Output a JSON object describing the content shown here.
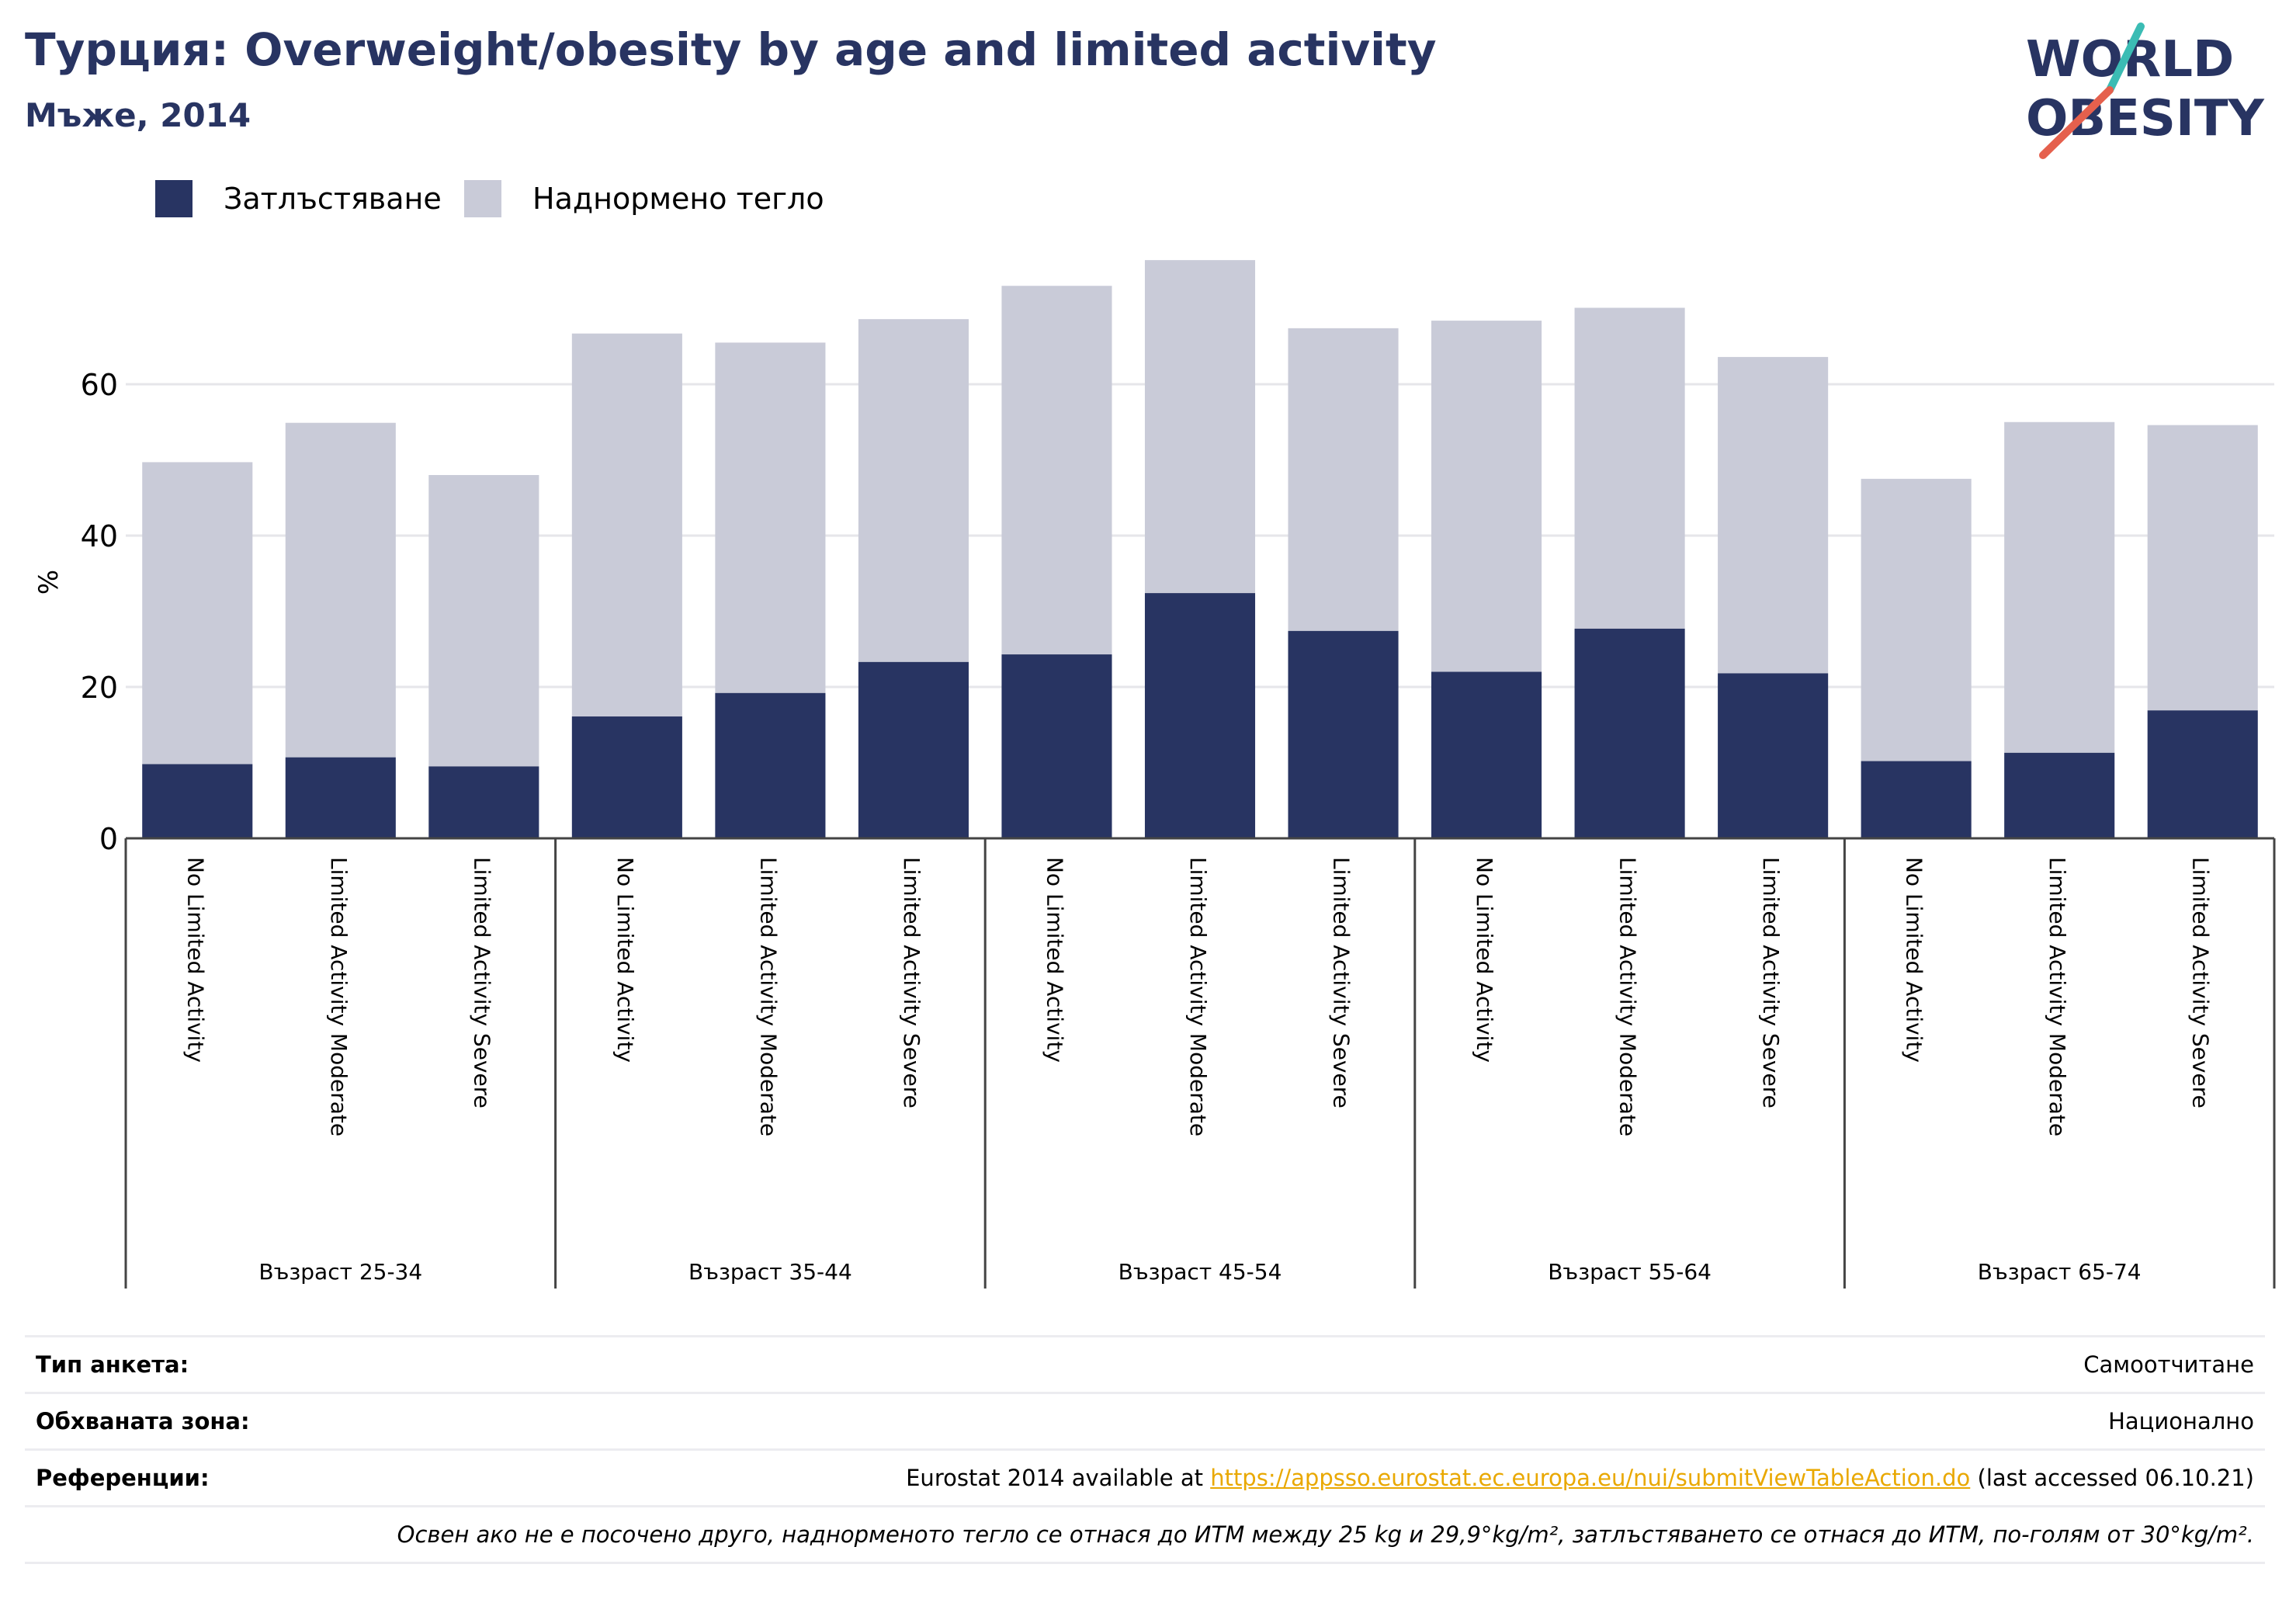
{
  "header": {
    "title": "Турция: Overweight/obesity by age and limited activity",
    "subtitle": "Мъже, 2014"
  },
  "logo": {
    "line1": "WORLD",
    "line2": "OBESITY"
  },
  "colors": {
    "obesity": "#283462",
    "overweight": "#c9cbd8",
    "brand_teal": "#3bbcb4",
    "brand_coral": "#e5604d",
    "link": "#e9a800"
  },
  "legend": [
    {
      "label": "Затлъстяване",
      "color": "#283462"
    },
    {
      "label": "Наднормено тегло",
      "color": "#c9cbd8"
    }
  ],
  "chart_data": {
    "type": "bar",
    "stacked": true,
    "ylabel": "%",
    "ylim": [
      0,
      80
    ],
    "yticks": [
      0,
      20,
      40,
      60
    ],
    "grid": true,
    "legend_position": "top-left",
    "categories": [
      "No Limited Activity",
      "Limited Activity Moderate",
      "Limited Activity Severe",
      "No Limited Activity",
      "Limited Activity Moderate",
      "Limited Activity Severe",
      "No Limited Activity",
      "Limited Activity Moderate",
      "Limited Activity Severe",
      "No Limited Activity",
      "Limited Activity Moderate",
      "Limited Activity Severe",
      "No Limited Activity",
      "Limited Activity Moderate",
      "Limited Activity Severe"
    ],
    "groups": [
      "Възраст 25-34",
      "Възраст 35-44",
      "Възраст 45-54",
      "Възраст 55-64",
      "Възраст 65-74"
    ],
    "series": [
      {
        "name": "Затлъстяване",
        "values": [
          9.8,
          10.7,
          9.5,
          16.1,
          19.2,
          23.3,
          24.3,
          32.4,
          27.4,
          22.0,
          27.7,
          21.8,
          10.2,
          11.3,
          16.9
        ]
      },
      {
        "name": "Наднормено тегло",
        "values": [
          39.9,
          44.2,
          38.5,
          50.6,
          46.3,
          45.3,
          48.7,
          44.0,
          40.0,
          46.4,
          42.4,
          41.8,
          37.3,
          43.7,
          37.7
        ]
      }
    ]
  },
  "info": {
    "survey_label": "Тип анкета:",
    "survey_value": "Самоотчитане",
    "area_label": "Обхваната зона:",
    "area_value": "Национално",
    "refs_label": "Референции:",
    "refs_prefix": "Eurostat 2014 available at ",
    "refs_link": "https://appsso.eurostat.ec.europa.eu/nui/submitViewTableAction.do",
    "refs_suffix": " (last accessed 06.10.21)",
    "note": "Освен ако не е посочено друго, наднорменото тегло се отнася до ИТМ между 25 kg и 29,9°kg/m², затлъстяването се отнася до ИТМ, по-голям от 30°kg/m²."
  }
}
